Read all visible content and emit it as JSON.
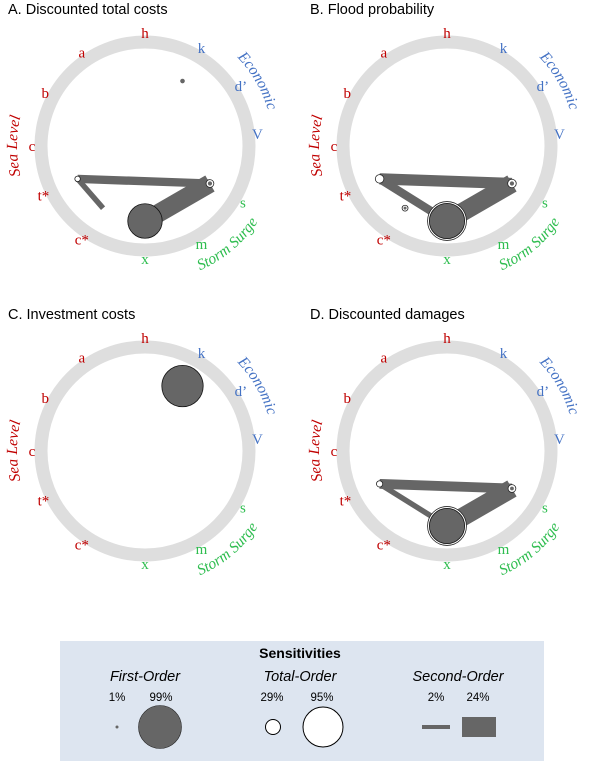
{
  "colors": {
    "ring": "#dedede",
    "mark": "#666666",
    "sea_level": "#c00000",
    "economic": "#4472c4",
    "storm_surge": "#2ebd4f",
    "legend_bg": "#dde5f0"
  },
  "chart_data": [
    {
      "type": "radial-convergence",
      "title": "A. Discounted total costs",
      "group_labels": {
        "sea_level": "Sea Level",
        "economic": "Economic",
        "storm_surge": "Storm Surge"
      },
      "parameters": [
        {
          "label": "h",
          "group": "sea_level",
          "first_order": 0.0,
          "total_order": 0.0
        },
        {
          "label": "k",
          "group": "economic",
          "first_order": 0.05,
          "total_order": 0.0
        },
        {
          "label": "d’",
          "group": "economic",
          "first_order": 0.0,
          "total_order": 0.0
        },
        {
          "label": "V",
          "group": "economic",
          "first_order": 0.0,
          "total_order": 0.0
        },
        {
          "label": "s",
          "group": "storm_surge",
          "first_order": 0.04,
          "total_order": 0.1
        },
        {
          "label": "m",
          "group": "storm_surge",
          "first_order": 0.0,
          "total_order": 0.0
        },
        {
          "label": "x",
          "group": "storm_surge",
          "first_order": 0.78,
          "total_order": 0.0
        },
        {
          "label": "c*",
          "group": "sea_level",
          "first_order": 0.0,
          "total_order": 0.0
        },
        {
          "label": "t*",
          "group": "sea_level",
          "first_order": 0.0,
          "total_order": 0.04
        },
        {
          "label": "c",
          "group": "sea_level",
          "first_order": 0.0,
          "total_order": 0.0
        },
        {
          "label": "b",
          "group": "sea_level",
          "first_order": 0.0,
          "total_order": 0.0
        },
        {
          "label": "a",
          "group": "sea_level",
          "first_order": 0.0,
          "total_order": 0.0
        }
      ],
      "second_order": [
        {
          "from": "t*",
          "to": "s",
          "value": 0.08
        },
        {
          "from": "x",
          "to": "s",
          "value": 0.22
        },
        {
          "from": "t*",
          "to": "c*",
          "value": 0.04
        }
      ]
    },
    {
      "type": "radial-convergence",
      "title": "B. Flood probability",
      "group_labels": {
        "sea_level": "Sea Level",
        "economic": "Economic",
        "storm_surge": "Storm Surge"
      },
      "parameters": [
        {
          "label": "h",
          "group": "sea_level",
          "first_order": 0.0,
          "total_order": 0.0
        },
        {
          "label": "k",
          "group": "economic",
          "first_order": 0.0,
          "total_order": 0.0
        },
        {
          "label": "d’",
          "group": "economic",
          "first_order": 0.0,
          "total_order": 0.0
        },
        {
          "label": "V",
          "group": "economic",
          "first_order": 0.0,
          "total_order": 0.0
        },
        {
          "label": "s",
          "group": "storm_surge",
          "first_order": 0.04,
          "total_order": 0.12
        },
        {
          "label": "m",
          "group": "storm_surge",
          "first_order": 0.0,
          "total_order": 0.0
        },
        {
          "label": "x",
          "group": "storm_surge",
          "first_order": 0.8,
          "total_order": 0.92
        },
        {
          "label": "c*",
          "group": "sea_level",
          "first_order": 0.01,
          "total_order": 0.05
        },
        {
          "label": "t*",
          "group": "sea_level",
          "first_order": 0.0,
          "total_order": 0.12
        },
        {
          "label": "c",
          "group": "sea_level",
          "first_order": 0.0,
          "total_order": 0.0
        },
        {
          "label": "b",
          "group": "sea_level",
          "first_order": 0.0,
          "total_order": 0.0
        },
        {
          "label": "a",
          "group": "sea_level",
          "first_order": 0.0,
          "total_order": 0.0
        }
      ],
      "second_order": [
        {
          "from": "t*",
          "to": "s",
          "value": 0.12
        },
        {
          "from": "x",
          "to": "s",
          "value": 0.22
        },
        {
          "from": "t*",
          "to": "x",
          "value": 0.08
        }
      ]
    },
    {
      "type": "radial-convergence",
      "title": "C. Investment  costs",
      "group_labels": {
        "sea_level": "Sea Level",
        "economic": "Economic",
        "storm_surge": "Storm Surge"
      },
      "parameters": [
        {
          "label": "h",
          "group": "sea_level",
          "first_order": 0.0,
          "total_order": 0.0
        },
        {
          "label": "k",
          "group": "economic",
          "first_order": 0.95,
          "total_order": 0.0
        },
        {
          "label": "d’",
          "group": "economic",
          "first_order": 0.0,
          "total_order": 0.0
        },
        {
          "label": "V",
          "group": "economic",
          "first_order": 0.0,
          "total_order": 0.0
        },
        {
          "label": "s",
          "group": "storm_surge",
          "first_order": 0.0,
          "total_order": 0.0
        },
        {
          "label": "m",
          "group": "storm_surge",
          "first_order": 0.0,
          "total_order": 0.0
        },
        {
          "label": "x",
          "group": "storm_surge",
          "first_order": 0.0,
          "total_order": 0.0
        },
        {
          "label": "c*",
          "group": "sea_level",
          "first_order": 0.0,
          "total_order": 0.0
        },
        {
          "label": "t*",
          "group": "sea_level",
          "first_order": 0.0,
          "total_order": 0.0
        },
        {
          "label": "c",
          "group": "sea_level",
          "first_order": 0.0,
          "total_order": 0.0
        },
        {
          "label": "b",
          "group": "sea_level",
          "first_order": 0.0,
          "total_order": 0.0
        },
        {
          "label": "a",
          "group": "sea_level",
          "first_order": 0.0,
          "total_order": 0.0
        }
      ],
      "second_order": []
    },
    {
      "type": "radial-convergence",
      "title": "D. Discounted damages",
      "group_labels": {
        "sea_level": "Sea Level",
        "economic": "Economic",
        "storm_surge": "Storm Surge"
      },
      "parameters": [
        {
          "label": "h",
          "group": "sea_level",
          "first_order": 0.0,
          "total_order": 0.0
        },
        {
          "label": "k",
          "group": "economic",
          "first_order": 0.0,
          "total_order": 0.0
        },
        {
          "label": "d’",
          "group": "economic",
          "first_order": 0.0,
          "total_order": 0.0
        },
        {
          "label": "V",
          "group": "economic",
          "first_order": 0.0,
          "total_order": 0.0
        },
        {
          "label": "s",
          "group": "storm_surge",
          "first_order": 0.03,
          "total_order": 0.1
        },
        {
          "label": "m",
          "group": "storm_surge",
          "first_order": 0.0,
          "total_order": 0.0
        },
        {
          "label": "x",
          "group": "storm_surge",
          "first_order": 0.8,
          "total_order": 0.92
        },
        {
          "label": "c*",
          "group": "sea_level",
          "first_order": 0.0,
          "total_order": 0.0
        },
        {
          "label": "t*",
          "group": "sea_level",
          "first_order": 0.0,
          "total_order": 0.06
        },
        {
          "label": "c",
          "group": "sea_level",
          "first_order": 0.0,
          "total_order": 0.0
        },
        {
          "label": "b",
          "group": "sea_level",
          "first_order": 0.0,
          "total_order": 0.0
        },
        {
          "label": "a",
          "group": "sea_level",
          "first_order": 0.0,
          "total_order": 0.0
        }
      ],
      "second_order": [
        {
          "from": "t*",
          "to": "s",
          "value": 0.1
        },
        {
          "from": "x",
          "to": "s",
          "value": 0.22
        },
        {
          "from": "x",
          "to": "t*",
          "value": 0.04
        }
      ]
    }
  ],
  "legend": {
    "title": "Sensitivities",
    "first_order": {
      "label": "First-Order",
      "min_label": "1%",
      "max_label": "99%",
      "min": 0.01,
      "max": 0.99
    },
    "total_order": {
      "label": "Total-Order",
      "min_label": "29%",
      "max_label": "95%",
      "min": 0.29,
      "max": 0.95
    },
    "second_order": {
      "label": "Second-Order",
      "min_label": "2%",
      "max_label": "24%",
      "min": 0.02,
      "max": 0.24
    }
  }
}
